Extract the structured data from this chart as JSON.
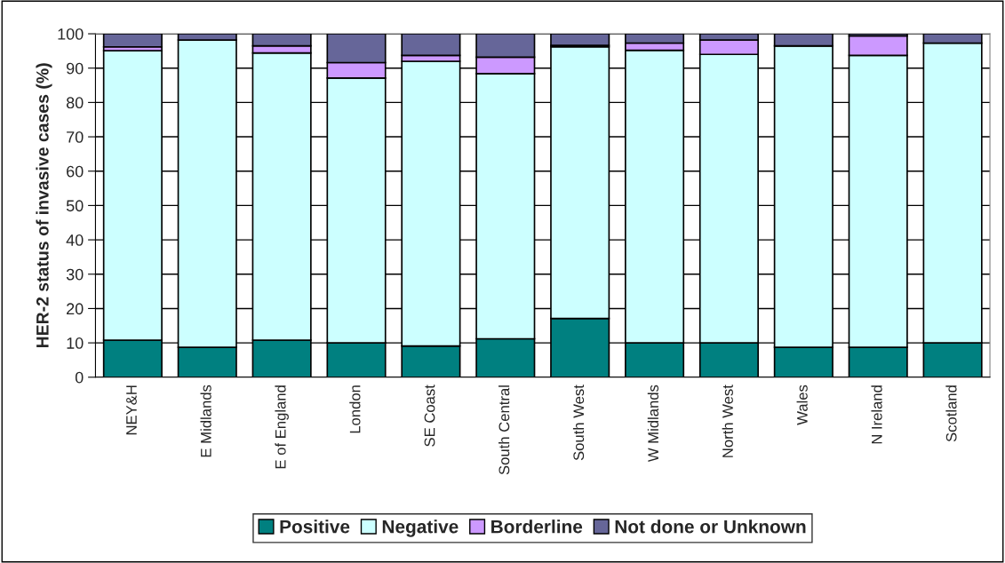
{
  "chart_data": {
    "type": "bar",
    "stacked": true,
    "ylabel": "HER-2 status of invasive cases (%)",
    "categories": [
      "NEY&H",
      "E Midlands",
      "E of England",
      "London",
      "SE Coast",
      "South Central",
      "South West",
      "W Midlands",
      "North West",
      "Wales",
      "N Ireland",
      "Scotland"
    ],
    "series": [
      {
        "name": "Positive",
        "color": "#008080",
        "values": [
          10.8,
          8.7,
          10.8,
          10.0,
          9.1,
          11.2,
          17.1,
          10.0,
          10.0,
          8.7,
          8.7,
          10.0
        ]
      },
      {
        "name": "Negative",
        "color": "#ccffff",
        "values": [
          84.3,
          89.5,
          83.6,
          77.1,
          82.9,
          77.2,
          79.1,
          85.2,
          84.0,
          87.8,
          85.0,
          87.3
        ]
      },
      {
        "name": "Borderline",
        "color": "#cc99ff",
        "values": [
          1.1,
          0,
          2.1,
          4.5,
          1.7,
          4.8,
          0.4,
          2.1,
          4.2,
          0,
          5.7,
          0
        ]
      },
      {
        "name": "Not done or Unknown",
        "color": "#666699",
        "values": [
          3.8,
          1.8,
          3.5,
          8.4,
          6.3,
          6.8,
          3.4,
          2.7,
          1.8,
          3.5,
          0.6,
          2.7
        ]
      }
    ],
    "ylim": [
      0,
      100
    ],
    "yticks": [
      0,
      10,
      20,
      30,
      40,
      50,
      60,
      70,
      80,
      90,
      100
    ],
    "grid": "y",
    "legend": "bottom"
  }
}
